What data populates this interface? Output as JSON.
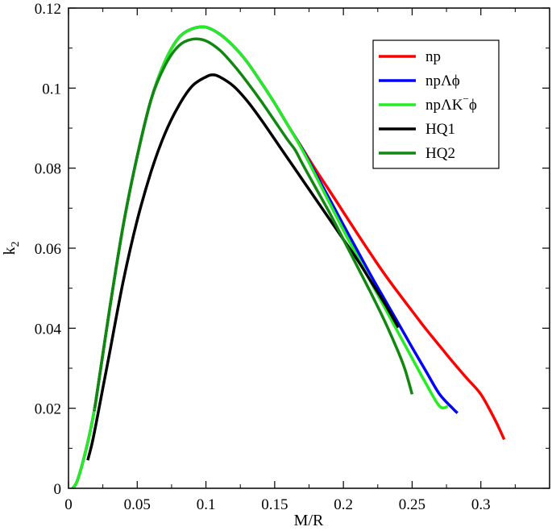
{
  "chart_data": {
    "type": "line",
    "title": "",
    "xlabel": "M/R",
    "ylabel_main": "k",
    "ylabel_sub": "2",
    "xlim": [
      0,
      0.35
    ],
    "ylim": [
      0,
      0.12
    ],
    "xticks": [
      0,
      0.05,
      0.1,
      0.15,
      0.2,
      0.25,
      0.3
    ],
    "xtick_labels": [
      "0",
      "0.05",
      "0.1",
      "0.15",
      "0.2",
      "0.25",
      "0.3"
    ],
    "yticks": [
      0,
      0.02,
      0.04,
      0.06,
      0.08,
      0.1,
      0.12
    ],
    "ytick_labels": [
      "0",
      "0.02",
      "0.04",
      "0.06",
      "0.08",
      "0.1",
      "0.12"
    ],
    "grid": false,
    "legend_position": "top-right",
    "series": [
      {
        "name": "np",
        "legend_parts": [
          "np"
        ],
        "color": "#ff0000",
        "x": [
          0.003,
          0.006,
          0.01,
          0.015,
          0.02,
          0.03,
          0.04,
          0.05,
          0.06,
          0.07,
          0.08,
          0.09,
          0.1,
          0.11,
          0.12,
          0.13,
          0.14,
          0.15,
          0.16,
          0.17,
          0.18,
          0.19,
          0.2,
          0.21,
          0.22,
          0.23,
          0.24,
          0.25,
          0.26,
          0.27,
          0.28,
          0.29,
          0.3,
          0.31,
          0.317
        ],
        "y": [
          0.0,
          0.0015,
          0.006,
          0.013,
          0.022,
          0.045,
          0.066,
          0.083,
          0.097,
          0.1065,
          0.1125,
          0.1148,
          0.1152,
          0.1135,
          0.1105,
          0.1065,
          0.1015,
          0.0962,
          0.0905,
          0.085,
          0.0795,
          0.0743,
          0.069,
          0.0637,
          0.0585,
          0.0535,
          0.0488,
          0.0443,
          0.0398,
          0.0356,
          0.0314,
          0.0274,
          0.0235,
          0.0173,
          0.0122
        ]
      },
      {
        "name": "npΛϕ",
        "legend_parts": [
          "npΛϕ"
        ],
        "color": "#0000ff",
        "x": [
          0.003,
          0.006,
          0.01,
          0.015,
          0.02,
          0.03,
          0.04,
          0.05,
          0.06,
          0.07,
          0.08,
          0.09,
          0.1,
          0.11,
          0.12,
          0.13,
          0.14,
          0.15,
          0.16,
          0.17,
          0.18,
          0.19,
          0.2,
          0.21,
          0.22,
          0.23,
          0.24,
          0.25,
          0.26,
          0.27,
          0.28,
          0.283
        ],
        "y": [
          0.0,
          0.0015,
          0.006,
          0.013,
          0.022,
          0.045,
          0.066,
          0.083,
          0.097,
          0.1065,
          0.1125,
          0.1148,
          0.1152,
          0.1135,
          0.1105,
          0.1065,
          0.1015,
          0.0962,
          0.0905,
          0.0848,
          0.0785,
          0.0722,
          0.0658,
          0.0595,
          0.0532,
          0.0472,
          0.0412,
          0.0352,
          0.0293,
          0.0235,
          0.0198,
          0.0188
        ]
      },
      {
        "name": "npΛK⁻ϕ",
        "legend_parts": [
          "npΛK",
          "−",
          "ϕ"
        ],
        "color": "#22ee22",
        "x": [
          0.003,
          0.006,
          0.01,
          0.015,
          0.02,
          0.03,
          0.04,
          0.05,
          0.06,
          0.07,
          0.08,
          0.09,
          0.1,
          0.11,
          0.12,
          0.13,
          0.14,
          0.15,
          0.16,
          0.17,
          0.18,
          0.19,
          0.2,
          0.21,
          0.22,
          0.23,
          0.24,
          0.25,
          0.26,
          0.27,
          0.276
        ],
        "y": [
          0.0,
          0.0015,
          0.006,
          0.013,
          0.022,
          0.045,
          0.066,
          0.083,
          0.097,
          0.1065,
          0.1125,
          0.1148,
          0.1152,
          0.1135,
          0.1105,
          0.1065,
          0.1015,
          0.0962,
          0.0905,
          0.0846,
          0.078,
          0.0712,
          0.0645,
          0.058,
          0.0515,
          0.0452,
          0.0388,
          0.0325,
          0.0262,
          0.0205,
          0.0205
        ]
      },
      {
        "name": "HQ1",
        "legend_parts": [
          "HQ1"
        ],
        "color": "#000000",
        "x": [
          0.014,
          0.017,
          0.02,
          0.025,
          0.03,
          0.04,
          0.05,
          0.06,
          0.07,
          0.08,
          0.09,
          0.1,
          0.105,
          0.11,
          0.12,
          0.13,
          0.14,
          0.15,
          0.16,
          0.17,
          0.18,
          0.19,
          0.2,
          0.21,
          0.22,
          0.23,
          0.24
        ],
        "y": [
          0.007,
          0.011,
          0.016,
          0.025,
          0.034,
          0.052,
          0.067,
          0.079,
          0.0885,
          0.0955,
          0.1005,
          0.1028,
          0.1033,
          0.1028,
          0.1005,
          0.0968,
          0.0922,
          0.0872,
          0.0822,
          0.0772,
          0.0722,
          0.0672,
          0.0622,
          0.0572,
          0.0517,
          0.0462,
          0.0402
        ]
      },
      {
        "name": "HQ2",
        "legend_parts": [
          "HQ2"
        ],
        "color": "#108810",
        "x": [
          0.019,
          0.02,
          0.03,
          0.04,
          0.05,
          0.06,
          0.07,
          0.08,
          0.09,
          0.1,
          0.11,
          0.12,
          0.13,
          0.14,
          0.15,
          0.16,
          0.165,
          0.17,
          0.18,
          0.19,
          0.2,
          0.21,
          0.22,
          0.23,
          0.24,
          0.245,
          0.25
        ],
        "y": [
          0.02,
          0.022,
          0.045,
          0.066,
          0.083,
          0.097,
          0.1055,
          0.1105,
          0.1122,
          0.1118,
          0.1095,
          0.1058,
          0.1015,
          0.0968,
          0.0918,
          0.0868,
          0.0845,
          0.0812,
          0.075,
          0.0688,
          0.0622,
          0.0555,
          0.0488,
          0.0418,
          0.034,
          0.0295,
          0.0235
        ]
      }
    ]
  }
}
